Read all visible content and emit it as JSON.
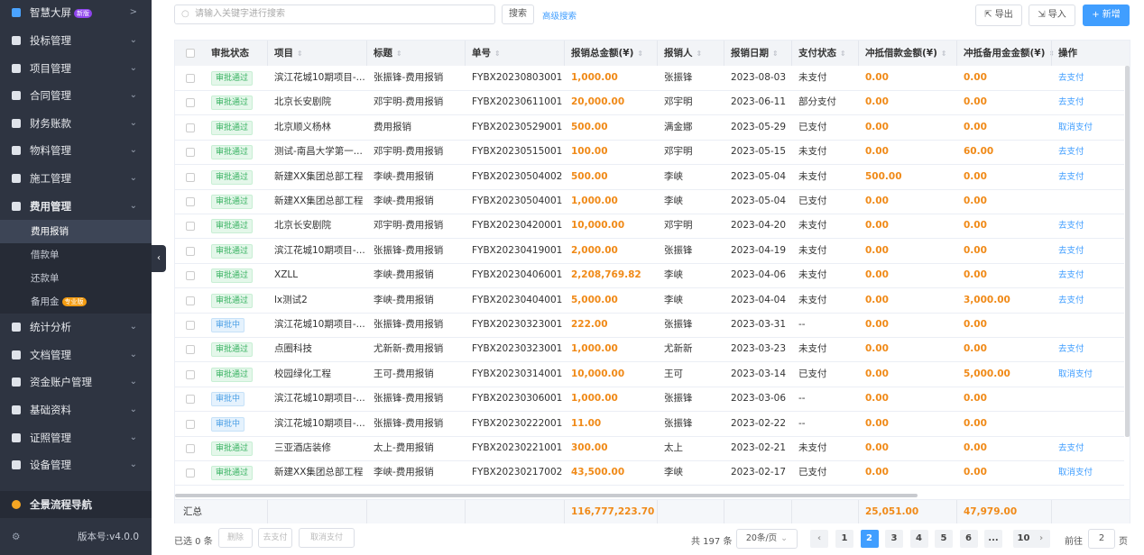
{
  "sidebar": {
    "brand": {
      "label": "智慧大屏",
      "badge": "新版"
    },
    "menu": [
      {
        "label": "投标管理"
      },
      {
        "label": "项目管理"
      },
      {
        "label": "合同管理"
      },
      {
        "label": "财务账款"
      },
      {
        "label": "物料管理"
      },
      {
        "label": "施工管理"
      },
      {
        "label": "费用管理"
      },
      {
        "label": "统计分析"
      },
      {
        "label": "文档管理"
      },
      {
        "label": "资金账户管理"
      },
      {
        "label": "基础资料"
      },
      {
        "label": "证照管理"
      },
      {
        "label": "设备管理"
      }
    ],
    "submenu": [
      {
        "label": "费用报销"
      },
      {
        "label": "借款单"
      },
      {
        "label": "还款单"
      },
      {
        "label": "备用金",
        "badge": "专业版"
      }
    ],
    "footer": {
      "nav": "全景流程导航",
      "version": "版本号:v4.0.0"
    }
  },
  "toolbar": {
    "search_placeholder": "请输入关键字进行搜索",
    "search": "搜索",
    "advanced": "高级搜索",
    "export": "导出",
    "import": "导入",
    "add": "+ 新增"
  },
  "table": {
    "columns": [
      "审批状态",
      "项目",
      "标题",
      "单号",
      "报销总金额(¥)",
      "报销人",
      "报销日期",
      "支付状态",
      "冲抵借款金额(¥)",
      "冲抵备用金金额(¥)",
      "操作"
    ],
    "rows": [
      [
        "审批通过",
        "滨江花城10期项目-...",
        "张振锋-费用报销",
        "FYBX20230803001",
        "1,000.00",
        "张振锋",
        "2023-08-03",
        "未支付",
        "0.00",
        "0.00",
        "去支付"
      ],
      [
        "审批通过",
        "北京长安剧院",
        "邓宇明-费用报销",
        "FYBX20230611001",
        "20,000.00",
        "邓宇明",
        "2023-06-11",
        "部分支付",
        "0.00",
        "0.00",
        "去支付"
      ],
      [
        "审批通过",
        "北京顺义杨林",
        "费用报销",
        "FYBX20230529001",
        "500.00",
        "满金娜",
        "2023-05-29",
        "已支付",
        "0.00",
        "0.00",
        "取消支付"
      ],
      [
        "审批通过",
        "测试-南昌大学第一...",
        "邓宇明-费用报销",
        "FYBX20230515001",
        "100.00",
        "邓宇明",
        "2023-05-15",
        "未支付",
        "0.00",
        "60.00",
        "去支付"
      ],
      [
        "审批通过",
        "新建XX集团总部工程",
        "李峡-费用报销",
        "FYBX20230504002",
        "500.00",
        "李峡",
        "2023-05-04",
        "未支付",
        "500.00",
        "0.00",
        "去支付"
      ],
      [
        "审批通过",
        "新建XX集团总部工程",
        "李峡-费用报销",
        "FYBX20230504001",
        "1,000.00",
        "李峡",
        "2023-05-04",
        "已支付",
        "0.00",
        "0.00",
        null
      ],
      [
        "审批通过",
        "北京长安剧院",
        "邓宇明-费用报销",
        "FYBX20230420001",
        "10,000.00",
        "邓宇明",
        "2023-04-20",
        "未支付",
        "0.00",
        "0.00",
        "去支付"
      ],
      [
        "审批通过",
        "滨江花城10期项目-...",
        "张振锋-费用报销",
        "FYBX20230419001",
        "2,000.00",
        "张振锋",
        "2023-04-19",
        "未支付",
        "0.00",
        "0.00",
        "去支付"
      ],
      [
        "审批通过",
        "XZLL",
        "李峡-费用报销",
        "FYBX20230406001",
        "2,208,769.82",
        "李峡",
        "2023-04-06",
        "未支付",
        "0.00",
        "0.00",
        "去支付"
      ],
      [
        "审批通过",
        "lx测试2",
        "李峡-费用报销",
        "FYBX20230404001",
        "5,000.00",
        "李峡",
        "2023-04-04",
        "未支付",
        "0.00",
        "3,000.00",
        "去支付"
      ],
      [
        "审批中",
        "滨江花城10期项目-...",
        "张振锋-费用报销",
        "FYBX20230323001",
        "222.00",
        "张振锋",
        "2023-03-31",
        "--",
        "0.00",
        "0.00",
        null
      ],
      [
        "审批通过",
        "点圈科技",
        "尤新新-费用报销",
        "FYBX20230323001",
        "1,000.00",
        "尤新新",
        "2023-03-23",
        "未支付",
        "0.00",
        "0.00",
        "去支付"
      ],
      [
        "审批通过",
        "校园绿化工程",
        "王可-费用报销",
        "FYBX20230314001",
        "10,000.00",
        "王可",
        "2023-03-14",
        "已支付",
        "0.00",
        "5,000.00",
        "取消支付"
      ],
      [
        "审批中",
        "滨江花城10期项目-...",
        "张振锋-费用报销",
        "FYBX20230306001",
        "1,000.00",
        "张振锋",
        "2023-03-06",
        "--",
        "0.00",
        "0.00",
        null
      ],
      [
        "审批中",
        "滨江花城10期项目-...",
        "张振锋-费用报销",
        "FYBX20230222001",
        "11.00",
        "张振锋",
        "2023-02-22",
        "--",
        "0.00",
        "0.00",
        null
      ],
      [
        "审批通过",
        "三亚酒店装修",
        "太上-费用报销",
        "FYBX20230221001",
        "300.00",
        "太上",
        "2023-02-21",
        "未支付",
        "0.00",
        "0.00",
        "去支付"
      ],
      [
        "审批通过",
        "新建XX集团总部工程",
        "李峡-费用报销",
        "FYBX20230217002",
        "43,500.00",
        "李峡",
        "2023-02-17",
        "已支付",
        "0.00",
        "0.00",
        "取消支付"
      ]
    ],
    "summary": {
      "label": "汇总",
      "total": "116,777,223.70",
      "loan": "25,051.00",
      "reserve": "47,979.00"
    }
  },
  "footer": {
    "selected": "已选 0 条",
    "delete": "删除",
    "pay": "去支付",
    "cancel": "取消支付",
    "total": "共 197 条",
    "page_size": "20条/页",
    "pages": [
      "1",
      "2",
      "3",
      "4",
      "5",
      "6",
      "...",
      "10"
    ],
    "current": "2",
    "goto": "前往",
    "goto_value": "2",
    "page_unit": "页"
  }
}
